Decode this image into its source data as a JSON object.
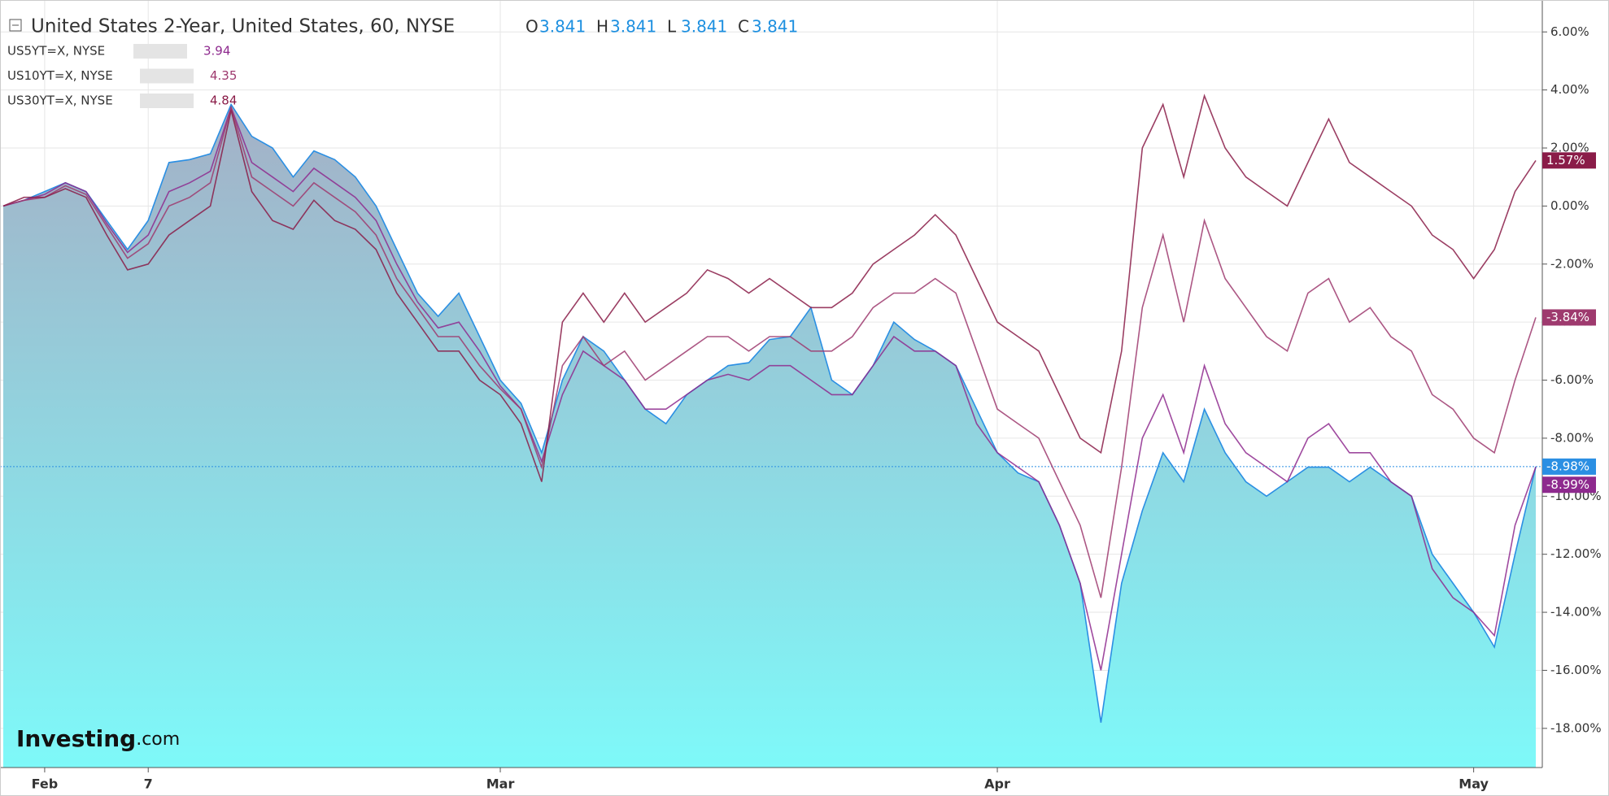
{
  "chart_data": {
    "type": "line",
    "title": "United States 2-Year, United States, 60, NYSE",
    "ohlc": [
      {
        "label": "O",
        "value": 3.841
      },
      {
        "label": "H",
        "value": 3.841
      },
      {
        "label": "L",
        "value": 3.841
      },
      {
        "label": "C",
        "value": 3.841
      }
    ],
    "logo": {
      "brand": "Investing",
      "suffix": ".com"
    },
    "categories": [
      null,
      null,
      "Feb",
      null,
      null,
      null,
      null,
      "7",
      null,
      null,
      null,
      null,
      null,
      null,
      null,
      null,
      null,
      null,
      null,
      null,
      null,
      null,
      null,
      null,
      "Mar",
      null,
      null,
      null,
      null,
      null,
      null,
      null,
      null,
      null,
      null,
      null,
      null,
      null,
      null,
      null,
      null,
      null,
      null,
      null,
      null,
      null,
      null,
      null,
      "Apr",
      null,
      null,
      null,
      null,
      null,
      null,
      null,
      null,
      null,
      null,
      null,
      null,
      null,
      null,
      null,
      null,
      null,
      null,
      null,
      null,
      null,
      null,
      "May",
      null,
      null,
      null
    ],
    "series": [
      {
        "color": "#2b8fe3",
        "area": true,
        "end_label": "-8.98%",
        "values": [
          0,
          0.2,
          0.5,
          0.8,
          0.5,
          -0.5,
          -1.5,
          -0.5,
          1.5,
          1.6,
          1.8,
          3.5,
          2.4,
          2.0,
          1.0,
          1.9,
          1.6,
          1.0,
          0.0,
          -1.5,
          -3.0,
          -3.8,
          -3.0,
          -4.5,
          -6.0,
          -6.8,
          -8.5,
          -6.0,
          -4.5,
          -5.0,
          -6.0,
          -7.0,
          -7.5,
          -6.5,
          -6.0,
          -5.5,
          -5.4,
          -4.6,
          -4.5,
          -3.5,
          -6.0,
          -6.5,
          -5.5,
          -4.0,
          -4.6,
          -5.0,
          -5.5,
          -7.0,
          -8.5,
          -9.2,
          -9.5,
          -11.0,
          -13.0,
          -17.8,
          -13.0,
          -10.5,
          -8.5,
          -9.5,
          -7.0,
          -8.5,
          -9.5,
          -10.0,
          -9.5,
          -9.0,
          -9.0,
          -9.5,
          -9.0,
          -9.5,
          -10.0,
          -12.0,
          -13.0,
          -14.0,
          -15.2,
          -12.0,
          -8.98
        ]
      },
      {
        "name": "US5YT=X, NYSE",
        "quote": 3.94,
        "color": "#8e2a8e",
        "end_label": "-8.99%",
        "values": [
          0,
          0.2,
          0.4,
          0.8,
          0.5,
          -0.6,
          -1.6,
          -1.0,
          0.5,
          0.8,
          1.2,
          3.4,
          1.5,
          1.0,
          0.5,
          1.3,
          0.8,
          0.3,
          -0.5,
          -2.0,
          -3.3,
          -4.2,
          -4.0,
          -5.0,
          -6.2,
          -7.0,
          -8.8,
          -6.5,
          -5.0,
          -5.5,
          -6.0,
          -7.0,
          -7.0,
          -6.5,
          -6.0,
          -5.8,
          -6.0,
          -5.5,
          -5.5,
          -6.0,
          -6.5,
          -6.5,
          -5.5,
          -4.5,
          -5.0,
          -5.0,
          -5.5,
          -7.5,
          -8.5,
          -9.0,
          -9.5,
          -11.0,
          -13.0,
          -16.0,
          -12.0,
          -8.0,
          -6.5,
          -8.5,
          -5.5,
          -7.5,
          -8.5,
          -9.0,
          -9.5,
          -8.0,
          -7.5,
          -8.5,
          -8.5,
          -9.5,
          -10.0,
          -12.5,
          -13.5,
          -14.0,
          -14.8,
          -11.0,
          -8.99
        ]
      },
      {
        "name": "US10YT=X, NYSE",
        "quote": 4.35,
        "color": "#9e3a6e",
        "end_label": "-3.84%",
        "values": [
          0,
          0.2,
          0.3,
          0.7,
          0.4,
          -0.7,
          -1.8,
          -1.3,
          0.0,
          0.3,
          0.8,
          3.4,
          1.0,
          0.5,
          0.0,
          0.8,
          0.3,
          -0.2,
          -1.0,
          -2.5,
          -3.5,
          -4.5,
          -4.5,
          -5.5,
          -6.3,
          -7.0,
          -9.0,
          -5.5,
          -4.5,
          -5.5,
          -5.0,
          -6.0,
          -5.5,
          -5.0,
          -4.5,
          -4.5,
          -5.0,
          -4.5,
          -4.5,
          -5.0,
          -5.0,
          -4.5,
          -3.5,
          -3.0,
          -3.0,
          -2.5,
          -3.0,
          -5.0,
          -7.0,
          -7.5,
          -8.0,
          -9.5,
          -11.0,
          -13.5,
          -9.0,
          -3.5,
          -1.0,
          -4.0,
          -0.5,
          -2.5,
          -3.5,
          -4.5,
          -5.0,
          -3.0,
          -2.5,
          -4.0,
          -3.5,
          -4.5,
          -5.0,
          -6.5,
          -7.0,
          -8.0,
          -8.5,
          -6.0,
          -3.84
        ]
      },
      {
        "name": "US30YT=X, NYSE",
        "quote": 4.84,
        "color": "#8a1c48",
        "end_label": "1.57%",
        "values": [
          0,
          0.3,
          0.3,
          0.6,
          0.3,
          -1.0,
          -2.2,
          -2.0,
          -1.0,
          -0.5,
          0.0,
          3.3,
          0.5,
          -0.5,
          -0.8,
          0.2,
          -0.5,
          -0.8,
          -1.5,
          -3.0,
          -4.0,
          -5.0,
          -5.0,
          -6.0,
          -6.5,
          -7.5,
          -9.5,
          -4.0,
          -3.0,
          -4.0,
          -3.0,
          -4.0,
          -3.5,
          -3.0,
          -2.2,
          -2.5,
          -3.0,
          -2.5,
          -3.0,
          -3.5,
          -3.5,
          -3.0,
          -2.0,
          -1.5,
          -1.0,
          -0.3,
          -1.0,
          -2.5,
          -4.0,
          -4.5,
          -5.0,
          -6.5,
          -8.0,
          -8.5,
          -5.0,
          2.0,
          3.5,
          1.0,
          3.8,
          2.0,
          1.0,
          0.5,
          0.0,
          1.5,
          3.0,
          1.5,
          1.0,
          0.5,
          0.0,
          -1.0,
          -1.5,
          -2.5,
          -1.5,
          0.5,
          1.57
        ]
      }
    ],
    "ylim": [
      -19.35,
      7.1
    ],
    "yticks": [
      {
        "value": 6,
        "label": "6.00%"
      },
      {
        "value": 4,
        "label": "4.00%"
      },
      {
        "value": 2,
        "label": "2.00%"
      },
      {
        "value": 0,
        "label": "0.00%"
      },
      {
        "value": -2,
        "label": "-2.00%"
      },
      {
        "value": -4,
        "label": "-4.00%"
      },
      {
        "value": -6,
        "label": "-6.00%"
      },
      {
        "value": -8,
        "label": "-8.00%"
      },
      {
        "value": -10,
        "label": "-10.00%"
      },
      {
        "value": -12,
        "label": "-12.00%"
      },
      {
        "value": -14,
        "label": "-14.00%"
      },
      {
        "value": -16,
        "label": "-16.00%"
      },
      {
        "value": -18,
        "label": "-18.00%"
      }
    ],
    "grid": true
  }
}
